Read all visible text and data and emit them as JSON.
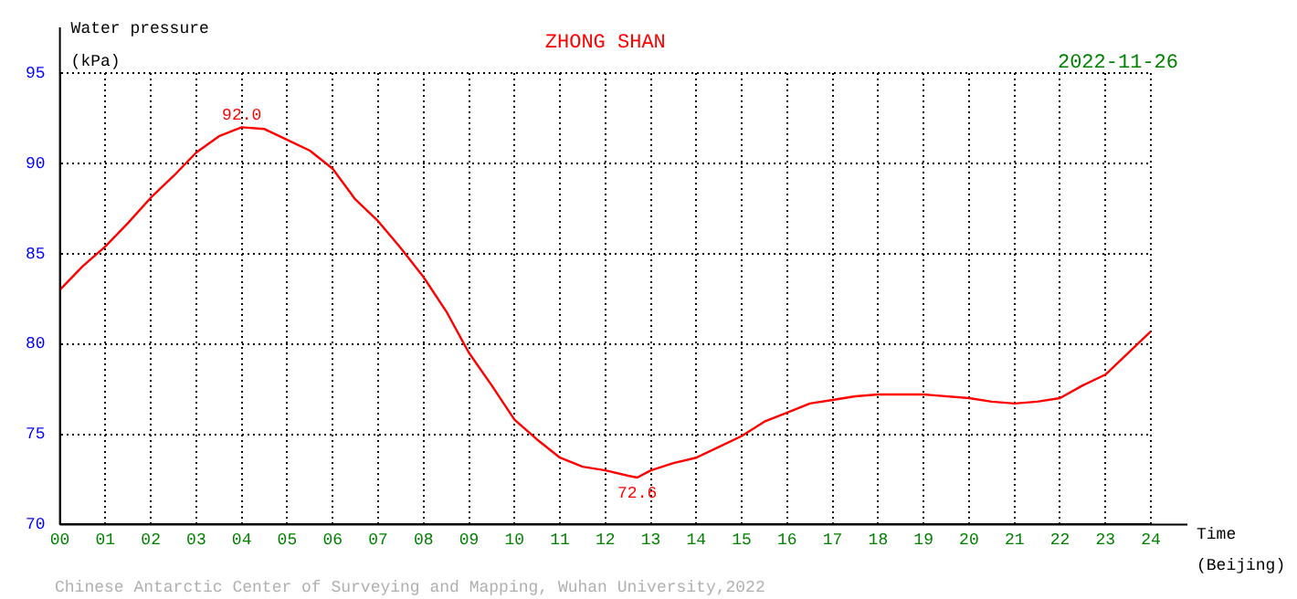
{
  "chart_data": {
    "type": "line",
    "title": "ZHONG SHAN",
    "subtitle": "2022-11-26",
    "xlabel": "Time\n(Beijing)",
    "ylabel": "Water pressure\n(kPa)",
    "xlim": [
      0,
      24
    ],
    "xticks": [
      {
        "value": 0,
        "label": "00"
      },
      {
        "value": 1,
        "label": "01"
      },
      {
        "value": 2,
        "label": "02"
      },
      {
        "value": 3,
        "label": "03"
      },
      {
        "value": 4,
        "label": "04"
      },
      {
        "value": 5,
        "label": "05"
      },
      {
        "value": 6,
        "label": "06"
      },
      {
        "value": 7,
        "label": "07"
      },
      {
        "value": 8,
        "label": "08"
      },
      {
        "value": 9,
        "label": "09"
      },
      {
        "value": 10,
        "label": "10"
      },
      {
        "value": 11,
        "label": "11"
      },
      {
        "value": 12,
        "label": "12"
      },
      {
        "value": 13,
        "label": "13"
      },
      {
        "value": 14,
        "label": "14"
      },
      {
        "value": 15,
        "label": "15"
      },
      {
        "value": 16,
        "label": "16"
      },
      {
        "value": 17,
        "label": "17"
      },
      {
        "value": 18,
        "label": "18"
      },
      {
        "value": 19,
        "label": "19"
      },
      {
        "value": 20,
        "label": "20"
      },
      {
        "value": 21,
        "label": "21"
      },
      {
        "value": 22,
        "label": "22"
      },
      {
        "value": 23,
        "label": "23"
      },
      {
        "value": 24,
        "label": "24"
      }
    ],
    "ylim": [
      70,
      95
    ],
    "yticks": [
      70,
      75,
      80,
      85,
      90,
      95
    ],
    "grid": true,
    "legend": false,
    "marker": "none",
    "line_style": "solid",
    "x": [
      0,
      0.5,
      1,
      1.5,
      2,
      2.5,
      3,
      3.5,
      4,
      4.5,
      5,
      5.5,
      6,
      6.5,
      7,
      7.5,
      8,
      8.5,
      9,
      9.5,
      10,
      10.5,
      11,
      11.5,
      12,
      12.5,
      12.7,
      13,
      13.5,
      14,
      14.5,
      15,
      15.5,
      16,
      16.5,
      17,
      17.5,
      18,
      19,
      20,
      20.5,
      21,
      21.5,
      22,
      22.5,
      23,
      23.5,
      24
    ],
    "series": [
      {
        "color": "#ff0000",
        "values": [
          83.0,
          84.3,
          85.4,
          86.7,
          88.1,
          89.3,
          90.6,
          91.5,
          92.0,
          91.9,
          91.3,
          90.7,
          89.7,
          88.0,
          86.8,
          85.3,
          83.7,
          81.8,
          79.5,
          77.7,
          75.8,
          74.7,
          73.7,
          73.2,
          73.0,
          72.7,
          72.6,
          73.0,
          73.4,
          73.7,
          74.3,
          74.9,
          75.7,
          76.2,
          76.7,
          76.9,
          77.1,
          77.2,
          77.2,
          77.0,
          76.8,
          76.7,
          76.8,
          77.0,
          77.7,
          78.3,
          79.5,
          80.7
        ]
      }
    ],
    "annotations": [
      {
        "text": "92.0",
        "x": 4,
        "y": 92.0
      },
      {
        "text": "72.6",
        "x": 12.7,
        "y": 72.6
      },
      "Chinese Antarctic Center of Surveying and Mapping, Wuhan University,2022"
    ]
  }
}
